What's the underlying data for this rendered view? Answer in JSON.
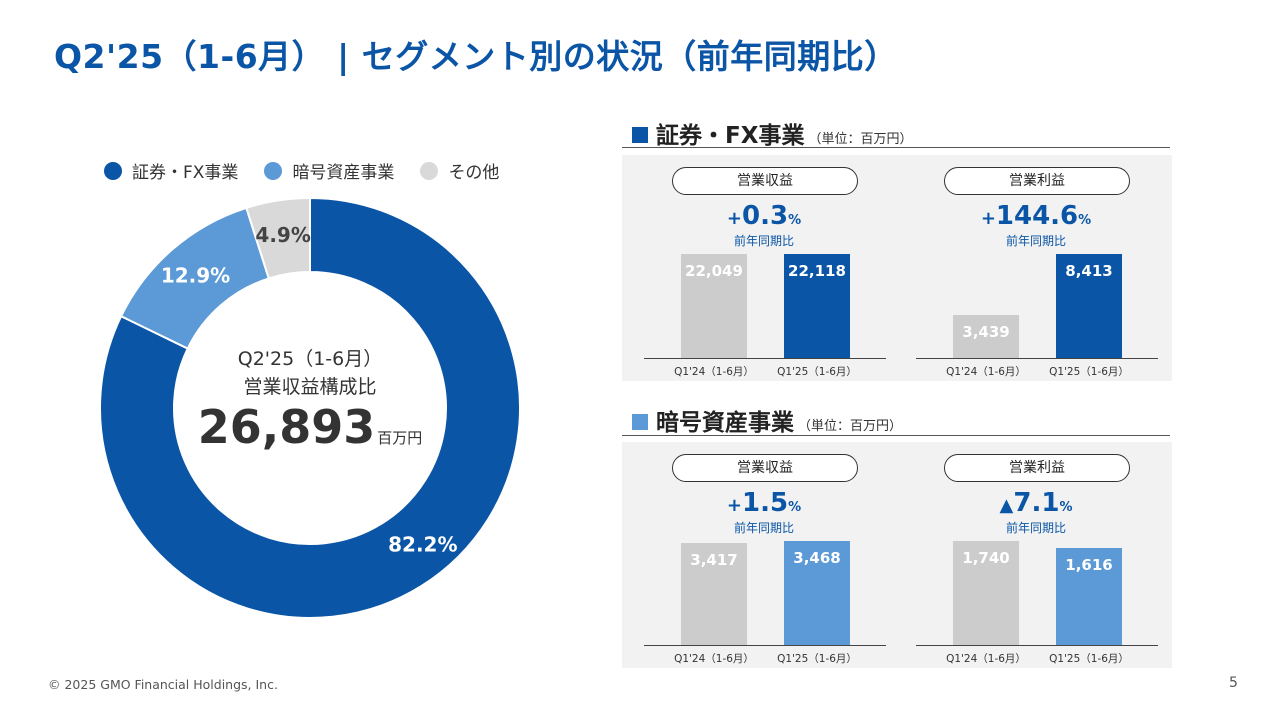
{
  "title": "Q2'25（1-6月） | セグメント別の状況（前年同期比）",
  "colors": {
    "brand": "#0a55a6",
    "crypto": "#5b9ad6",
    "other": "#d9d9d9",
    "prior": "#cccccc"
  },
  "chart_data": [
    {
      "type": "pie",
      "variant": "donut",
      "legend_position": "top",
      "labels": [
        "証券・FX事業",
        "暗号資産事業",
        "その他"
      ],
      "values": [
        82.2,
        12.9,
        4.9
      ],
      "value_labels": [
        "82.2%",
        "12.9%",
        "4.9%"
      ],
      "center": {
        "period": "Q2'25（1-6月）",
        "label": "営業収益構成比",
        "value": "26,893",
        "unit": "百万円"
      }
    },
    {
      "type": "bar",
      "section": "証券・FX事業",
      "title": "営業収益",
      "categories": [
        "Q1'24（1-6月）",
        "Q1'25（1-6月）"
      ],
      "values": [
        22049,
        22118
      ],
      "value_labels": [
        "22,049",
        "22,118"
      ],
      "growth": {
        "sign": "+",
        "number": "0.3",
        "unit": "%",
        "caption": "前年同期比"
      }
    },
    {
      "type": "bar",
      "section": "証券・FX事業",
      "title": "営業利益",
      "categories": [
        "Q1'24（1-6月）",
        "Q1'25（1-6月）"
      ],
      "values": [
        3439,
        8413
      ],
      "value_labels": [
        "3,439",
        "8,413"
      ],
      "growth": {
        "sign": "+",
        "number": "144.6",
        "unit": "%",
        "caption": "前年同期比"
      }
    },
    {
      "type": "bar",
      "section": "暗号資産事業",
      "title": "営業収益",
      "categories": [
        "Q1'24（1-6月）",
        "Q1'25（1-6月）"
      ],
      "values": [
        3417,
        3468
      ],
      "value_labels": [
        "3,417",
        "3,468"
      ],
      "growth": {
        "sign": "+",
        "number": "1.5",
        "unit": "%",
        "caption": "前年同期比"
      }
    },
    {
      "type": "bar",
      "section": "暗号資産事業",
      "title": "営業利益",
      "categories": [
        "Q1'24（1-6月）",
        "Q1'25（1-6月）"
      ],
      "values": [
        1740,
        1616
      ],
      "value_labels": [
        "1,740",
        "1,616"
      ],
      "growth": {
        "sign": "▲",
        "number": "7.1",
        "unit": "%",
        "caption": "前年同期比"
      }
    }
  ],
  "sections": {
    "fx": {
      "title": "証券・FX事業",
      "unit": "（単位：百万円）"
    },
    "crypto": {
      "title": "暗号資産事業",
      "unit": "（単位：百万円）"
    }
  },
  "footer": "© 2025 GMO Financial Holdings, Inc.",
  "page_number": "5"
}
